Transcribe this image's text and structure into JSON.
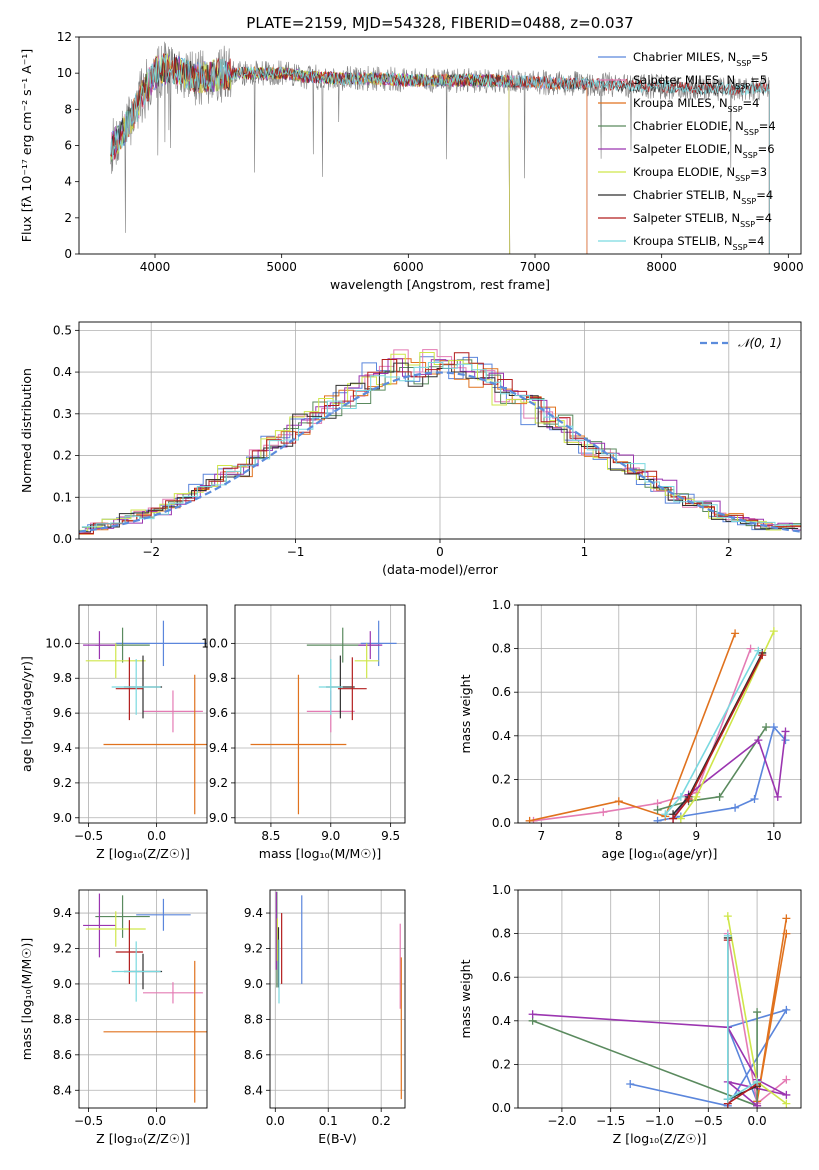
{
  "figure_title": "PLATE=2159, MJD=54328, FIBERID=0488, z=0.037",
  "colors": {
    "chabrier_miles": "#5b86dc",
    "salpeter_miles": "#e47bb4",
    "kroupa_miles": "#e0721e",
    "chabrier_elodie": "#5a8a5e",
    "salpeter_elodie": "#9b35b0",
    "kroupa_elodie": "#cfe64a",
    "chabrier_stelib": "#2f2f2f",
    "salpeter_stelib": "#b21e1e",
    "kroupa_stelib": "#7ad9e0",
    "data": "#7f7f7f",
    "normal_curve": "#5b8cdc",
    "grid": "#b0b0b0"
  },
  "legend_spectrum": [
    "Chabrier MILES, N_SSP=5",
    "Salpeter MILES, N_SSP=5",
    "Kroupa MILES, N_SSP=4",
    "Chabrier ELODIE, N_SSP=4",
    "Salpeter ELODIE, N_SSP=6",
    "Kroupa ELODIE, N_SSP=3",
    "Chabrier STELIB, N_SSP=4",
    "Salpeter STELIB, N_SSP=4",
    "Kroupa STELIB, N_SSP=4"
  ],
  "chart_data": [
    {
      "id": "spectrum",
      "type": "line",
      "xlabel": "wavelength [Angstrom, rest frame]",
      "ylabel": "Flux [fλ 10⁻¹⁷ erg cm⁻² s⁻¹ A⁻¹]",
      "xlim": [
        3400,
        9100
      ],
      "ylim": [
        0,
        12
      ],
      "xticks": [
        4000,
        5000,
        6000,
        7000,
        8000,
        9000
      ],
      "yticks": [
        0,
        2,
        4,
        6,
        8,
        10,
        12
      ],
      "grid": false,
      "legend": "top-right",
      "continuum": {
        "x": [
          3650,
          3700,
          3800,
          3900,
          4000,
          4100,
          4200,
          4300,
          4500,
          4700,
          5000,
          5200,
          5500,
          5800,
          6000,
          6300,
          6600,
          7000,
          7400,
          7800,
          8200,
          8600,
          8850
        ],
        "y": [
          5.8,
          6.3,
          7.3,
          8.8,
          10.0,
          10.3,
          10.1,
          9.7,
          9.9,
          10.0,
          10.0,
          9.8,
          9.7,
          9.7,
          9.6,
          9.6,
          9.6,
          9.5,
          9.4,
          9.3,
          9.2,
          9.1,
          9.2
        ]
      },
      "model_wavelength_range": [
        {
          "series": "Chabrier MILES, N_SSP=5",
          "min": 3650,
          "max": 7410
        },
        {
          "series": "Salpeter MILES, N_SSP=5",
          "min": 3650,
          "max": 7410
        },
        {
          "series": "Kroupa MILES, N_SSP=4",
          "min": 3650,
          "max": 7410
        },
        {
          "series": "Chabrier ELODIE, N_SSP=4",
          "min": 3650,
          "max": 6800
        },
        {
          "series": "Salpeter ELODIE, N_SSP=6",
          "min": 3650,
          "max": 6800
        },
        {
          "series": "Kroupa ELODIE, N_SSP=3",
          "min": 3650,
          "max": 6800
        },
        {
          "series": "Chabrier STELIB, N_SSP=4",
          "min": 3650,
          "max": 8850
        },
        {
          "series": "Salpeter STELIB, N_SSP=4",
          "min": 3650,
          "max": 8850
        },
        {
          "series": "Kroupa STELIB, N_SSP=4",
          "min": 3650,
          "max": 8850
        }
      ]
    },
    {
      "id": "residuals",
      "type": "line",
      "xlabel": "(data-model)/error",
      "ylabel": "Normed distribution",
      "xlim": [
        -2.5,
        2.5
      ],
      "ylim": [
        0,
        0.52
      ],
      "xticks": [
        -2,
        -1,
        0,
        1,
        2
      ],
      "yticks": [
        0.0,
        0.1,
        0.2,
        0.3,
        0.4,
        0.5
      ],
      "grid": true,
      "legend": "top-right",
      "legend_label": "𝒩(0, 1)",
      "bin_width": 0.1,
      "mean_histogram": {
        "x": [
          -2.45,
          -2.35,
          -2.25,
          -2.15,
          -2.05,
          -1.95,
          -1.85,
          -1.75,
          -1.65,
          -1.55,
          -1.45,
          -1.35,
          -1.25,
          -1.15,
          -1.05,
          -0.95,
          -0.85,
          -0.75,
          -0.65,
          -0.55,
          -0.45,
          -0.35,
          -0.25,
          -0.15,
          -0.05,
          0.05,
          0.15,
          0.25,
          0.35,
          0.45,
          0.55,
          0.65,
          0.75,
          0.85,
          0.95,
          1.05,
          1.15,
          1.25,
          1.35,
          1.45,
          1.55,
          1.65,
          1.75,
          1.85,
          1.95,
          2.05,
          2.15,
          2.25,
          2.35,
          2.45
        ],
        "y": [
          0.02,
          0.03,
          0.04,
          0.05,
          0.06,
          0.07,
          0.08,
          0.1,
          0.12,
          0.14,
          0.16,
          0.17,
          0.2,
          0.23,
          0.25,
          0.28,
          0.3,
          0.32,
          0.34,
          0.36,
          0.38,
          0.4,
          0.41,
          0.41,
          0.42,
          0.41,
          0.41,
          0.4,
          0.38,
          0.36,
          0.34,
          0.31,
          0.29,
          0.27,
          0.25,
          0.22,
          0.2,
          0.18,
          0.16,
          0.14,
          0.12,
          0.1,
          0.09,
          0.08,
          0.06,
          0.05,
          0.04,
          0.035,
          0.03,
          0.03
        ]
      },
      "normal": {
        "mean": 0,
        "sigma": 1
      }
    },
    {
      "id": "age-vs-Z",
      "type": "scatter",
      "xlabel": "Z [log₁₀(Z/Z☉)]",
      "ylabel": "age  [log₁₀(age/yr)]",
      "xlim": [
        -0.57,
        0.37
      ],
      "ylim": [
        8.97,
        10.22
      ],
      "xticks": [
        -0.5,
        0.0
      ],
      "yticks": [
        9.0,
        9.2,
        9.4,
        9.6,
        9.8,
        10.0
      ],
      "grid": true,
      "points": [
        {
          "series": "Chabrier MILES",
          "x": 0.05,
          "y": 10.0,
          "xerr": 0.35,
          "yerr": 0.13
        },
        {
          "series": "Salpeter MILES",
          "x": 0.12,
          "y": 9.61,
          "xerr": 0.22,
          "yerr": 0.12
        },
        {
          "series": "Kroupa MILES",
          "x": 0.28,
          "y": 9.42,
          "xerr": 0.67,
          "yerr": 0.4
        },
        {
          "series": "Chabrier ELODIE",
          "x": -0.25,
          "y": 9.99,
          "xerr": 0.2,
          "yerr": 0.1
        },
        {
          "series": "Salpeter ELODIE",
          "x": -0.42,
          "y": 9.99,
          "xerr": 0.12,
          "yerr": 0.08
        },
        {
          "series": "Kroupa ELODIE",
          "x": -0.3,
          "y": 9.9,
          "xerr": 0.22,
          "yerr": 0.1
        },
        {
          "series": "Chabrier STELIB",
          "x": -0.1,
          "y": 9.75,
          "xerr": 0.14,
          "yerr": 0.18
        },
        {
          "series": "Salpeter STELIB",
          "x": -0.2,
          "y": 9.74,
          "xerr": 0.1,
          "yerr": 0.18
        },
        {
          "series": "Kroupa STELIB",
          "x": -0.15,
          "y": 9.75,
          "xerr": 0.18,
          "yerr": 0.16
        }
      ]
    },
    {
      "id": "age-vs-mass",
      "type": "scatter",
      "xlabel": "mass [log₁₀(M/M☉)]",
      "ylabel": "",
      "xlim": [
        8.2,
        9.62
      ],
      "ylim": [
        8.97,
        10.22
      ],
      "xticks": [
        8.5,
        9.0,
        9.5
      ],
      "yticks": [
        9.0,
        9.2,
        9.4,
        9.6,
        9.8,
        10.0
      ],
      "grid": true,
      "points": [
        {
          "series": "Chabrier MILES",
          "x": 9.4,
          "y": 10.0,
          "xerr": 0.15,
          "yerr": 0.13
        },
        {
          "series": "Salpeter MILES",
          "x": 9.0,
          "y": 9.61,
          "xerr": 0.2,
          "yerr": 0.12
        },
        {
          "series": "Kroupa MILES",
          "x": 8.73,
          "y": 9.42,
          "xerr": 0.4,
          "yerr": 0.4
        },
        {
          "series": "Chabrier ELODIE",
          "x": 9.1,
          "y": 9.99,
          "xerr": 0.3,
          "yerr": 0.1
        },
        {
          "series": "Salpeter ELODIE",
          "x": 9.33,
          "y": 9.99,
          "xerr": 0.1,
          "yerr": 0.08
        },
        {
          "series": "Kroupa ELODIE",
          "x": 9.3,
          "y": 9.9,
          "xerr": 0.1,
          "yerr": 0.1
        },
        {
          "series": "Chabrier STELIB",
          "x": 9.08,
          "y": 9.75,
          "xerr": 0.12,
          "yerr": 0.18
        },
        {
          "series": "Salpeter STELIB",
          "x": 9.18,
          "y": 9.74,
          "xerr": 0.12,
          "yerr": 0.18
        },
        {
          "series": "Kroupa STELIB",
          "x": 9.0,
          "y": 9.75,
          "xerr": 0.1,
          "yerr": 0.16
        }
      ]
    },
    {
      "id": "mass-weight-vs-age",
      "type": "line",
      "xlabel": "age  [log₁₀(age/yr)]",
      "ylabel": "mass weight",
      "xlim": [
        6.7,
        10.35
      ],
      "ylim": [
        0,
        1.0
      ],
      "xticks": [
        7,
        8,
        9,
        10
      ],
      "yticks": [
        0.0,
        0.2,
        0.4,
        0.6,
        0.8,
        1.0
      ],
      "grid": true,
      "series": [
        {
          "name": "Chabrier MILES",
          "x": [
            8.5,
            8.8,
            9.5,
            9.75,
            10.0,
            10.15
          ],
          "y": [
            0.01,
            0.03,
            0.07,
            0.11,
            0.44,
            0.38
          ]
        },
        {
          "name": "Salpeter MILES",
          "x": [
            6.9,
            7.8,
            8.5,
            9.0,
            9.7
          ],
          "y": [
            0.01,
            0.05,
            0.09,
            0.14,
            0.8
          ]
        },
        {
          "name": "Kroupa MILES",
          "x": [
            6.85,
            8.0,
            8.6,
            9.5
          ],
          "y": [
            0.01,
            0.1,
            0.03,
            0.87
          ]
        },
        {
          "name": "Chabrier ELODIE",
          "x": [
            8.5,
            8.9,
            9.3,
            9.9
          ],
          "y": [
            0.06,
            0.1,
            0.12,
            0.44
          ]
        },
        {
          "name": "Salpeter ELODIE",
          "x": [
            8.7,
            8.9,
            9.8,
            10.05,
            10.15
          ],
          "y": [
            0.02,
            0.13,
            0.38,
            0.12,
            0.42
          ]
        },
        {
          "name": "Kroupa ELODIE",
          "x": [
            8.8,
            9.0,
            10.0
          ],
          "y": [
            0.02,
            0.12,
            0.88
          ]
        },
        {
          "name": "Chabrier STELIB",
          "x": [
            8.7,
            8.9,
            9.85
          ],
          "y": [
            0.04,
            0.12,
            0.78
          ]
        },
        {
          "name": "Salpeter STELIB",
          "x": [
            8.7,
            8.9,
            9.85
          ],
          "y": [
            0.02,
            0.11,
            0.77
          ]
        },
        {
          "name": "Kroupa STELIB",
          "x": [
            8.6,
            8.8,
            9.8
          ],
          "y": [
            0.04,
            0.12,
            0.79
          ]
        }
      ]
    },
    {
      "id": "mass-vs-Z",
      "type": "scatter",
      "xlabel": "Z [log₁₀(Z/Z☉)]",
      "ylabel": "mass [log₁₀(M/M☉)]",
      "xlim": [
        -0.57,
        0.37
      ],
      "ylim": [
        8.3,
        9.53
      ],
      "xticks": [
        -0.5,
        0.0
      ],
      "yticks": [
        8.4,
        8.6,
        8.8,
        9.0,
        9.2,
        9.4
      ],
      "grid": true,
      "points": [
        {
          "series": "Chabrier MILES",
          "x": 0.05,
          "y": 9.39,
          "xerr": 0.2,
          "yerr": 0.09
        },
        {
          "series": "Salpeter MILES",
          "x": 0.12,
          "y": 8.95,
          "xerr": 0.22,
          "yerr": 0.06
        },
        {
          "series": "Kroupa MILES",
          "x": 0.28,
          "y": 8.73,
          "xerr": 0.67,
          "yerr": 0.4
        },
        {
          "series": "Chabrier ELODIE",
          "x": -0.25,
          "y": 9.38,
          "xerr": 0.2,
          "yerr": 0.12
        },
        {
          "series": "Salpeter ELODIE",
          "x": -0.42,
          "y": 9.33,
          "xerr": 0.12,
          "yerr": 0.18
        },
        {
          "series": "Kroupa ELODIE",
          "x": -0.3,
          "y": 9.31,
          "xerr": 0.22,
          "yerr": 0.1
        },
        {
          "series": "Chabrier STELIB",
          "x": -0.1,
          "y": 9.07,
          "xerr": 0.14,
          "yerr": 0.1
        },
        {
          "series": "Salpeter STELIB",
          "x": -0.2,
          "y": 9.18,
          "xerr": 0.1,
          "yerr": 0.18
        },
        {
          "series": "Kroupa STELIB",
          "x": -0.15,
          "y": 9.07,
          "xerr": 0.18,
          "yerr": 0.17
        }
      ]
    },
    {
      "id": "mass-vs-ebv",
      "type": "scatter",
      "xlabel": "E(B-V)",
      "ylabel": "",
      "xlim": [
        -0.01,
        0.245
      ],
      "ylim": [
        8.3,
        9.53
      ],
      "xticks": [
        0.0,
        0.1,
        0.2
      ],
      "yticks": [
        8.4,
        8.6,
        8.8,
        9.0,
        9.2,
        9.4
      ],
      "grid": true,
      "points": [
        {
          "series": "Chabrier MILES",
          "x": 0.05,
          "y": 9.25,
          "xerr": 0.0,
          "yerr": 0.25
        },
        {
          "series": "Salpeter MILES",
          "x": 0.236,
          "y": 9.1,
          "xerr": 0.0,
          "yerr": 0.24
        },
        {
          "series": "Kroupa MILES",
          "x": 0.238,
          "y": 8.75,
          "xerr": 0.0,
          "yerr": 0.4
        },
        {
          "series": "Chabrier ELODIE",
          "x": 0.003,
          "y": 9.25,
          "xerr": 0.0,
          "yerr": 0.27
        },
        {
          "series": "Salpeter ELODIE",
          "x": 0.002,
          "y": 9.3,
          "xerr": 0.0,
          "yerr": 0.22
        },
        {
          "series": "Kroupa ELODIE",
          "x": 0.004,
          "y": 9.25,
          "xerr": 0.0,
          "yerr": 0.12
        },
        {
          "series": "Chabrier STELIB",
          "x": 0.006,
          "y": 9.15,
          "xerr": 0.0,
          "yerr": 0.17
        },
        {
          "series": "Salpeter STELIB",
          "x": 0.012,
          "y": 9.2,
          "xerr": 0.0,
          "yerr": 0.2
        },
        {
          "series": "Kroupa STELIB",
          "x": 0.007,
          "y": 9.07,
          "xerr": 0.0,
          "yerr": 0.18
        }
      ]
    },
    {
      "id": "mass-weight-vs-Z",
      "type": "line",
      "xlabel": "Z [log₁₀(Z/Z☉)]",
      "ylabel": "mass weight",
      "xlim": [
        -2.45,
        0.45
      ],
      "ylim": [
        0,
        1.0
      ],
      "xticks": [
        -2.0,
        -1.5,
        -1.0,
        -0.5,
        0.0
      ],
      "yticks": [
        0.0,
        0.2,
        0.4,
        0.6,
        0.8,
        1.0
      ],
      "grid": true,
      "series": [
        {
          "name": "Chabrier MILES",
          "x": [
            -1.3,
            -0.3,
            0.3,
            -0.3,
            0.0
          ],
          "y": [
            0.11,
            0.01,
            0.45,
            0.37,
            0.03
          ]
        },
        {
          "name": "Salpeter MILES",
          "x": [
            -0.3,
            0.0,
            0.3
          ],
          "y": [
            0.8,
            0.02,
            0.13
          ]
        },
        {
          "name": "Kroupa MILES",
          "x": [
            0.3,
            0.0,
            0.3
          ],
          "y": [
            0.87,
            0.03,
            0.8
          ]
        },
        {
          "name": "Chabrier ELODIE",
          "x": [
            -2.3,
            0.0,
            0.0
          ],
          "y": [
            0.4,
            0.01,
            0.44
          ]
        },
        {
          "name": "Salpeter ELODIE",
          "x": [
            -2.3,
            -0.3,
            0.0,
            0.3,
            -0.3,
            0.0
          ],
          "y": [
            0.43,
            0.37,
            0.13,
            0.06,
            0.12,
            0.01
          ]
        },
        {
          "name": "Kroupa ELODIE",
          "x": [
            -0.3,
            0.0,
            0.3
          ],
          "y": [
            0.88,
            0.12,
            0.02
          ]
        },
        {
          "name": "Chabrier STELIB",
          "x": [
            -0.3,
            -0.3,
            0.0
          ],
          "y": [
            0.78,
            0.04,
            0.1
          ]
        },
        {
          "name": "Salpeter STELIB",
          "x": [
            -0.3,
            -0.3,
            0.0
          ],
          "y": [
            0.77,
            0.02,
            0.11
          ]
        },
        {
          "name": "Kroupa STELIB",
          "x": [
            -0.3,
            -0.3,
            0.0
          ],
          "y": [
            0.79,
            0.04,
            0.12
          ]
        }
      ]
    }
  ]
}
